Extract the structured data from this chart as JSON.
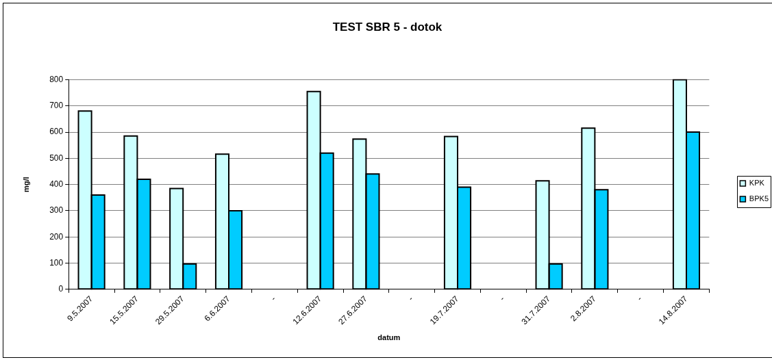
{
  "chart_data": {
    "type": "bar",
    "title": "TEST SBR 5 - dotok",
    "xlabel": "datum",
    "ylabel": "mg/l",
    "categories": [
      "9.5.2007",
      "15.5.2007",
      "29.5.2007",
      "6.6.2007",
      "-",
      "12.6.2007",
      "27.6.2007",
      "-",
      "19.7.2007",
      "-",
      "31.7.2007",
      "2.8.2007",
      "-",
      "14.8.2007"
    ],
    "series": [
      {
        "name": "KPK",
        "color": "#ccffff",
        "values": [
          680,
          585,
          385,
          516,
          null,
          755,
          573,
          null,
          583,
          null,
          414,
          615,
          null,
          800
        ]
      },
      {
        "name": "BPK5",
        "color": "#00ccff",
        "values": [
          360,
          420,
          97,
          300,
          null,
          520,
          440,
          null,
          390,
          null,
          97,
          380,
          null,
          600
        ]
      }
    ],
    "ylim": [
      0,
      800
    ],
    "yticks": [
      0,
      100,
      200,
      300,
      400,
      500,
      600,
      700,
      800
    ],
    "grid": "y",
    "legend": "right"
  }
}
